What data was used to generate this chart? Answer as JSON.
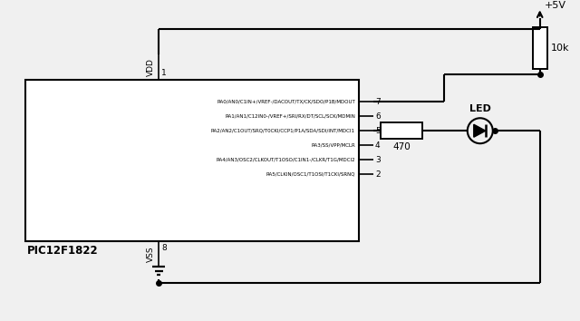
{
  "bg_color": "#f0f0f0",
  "line_color": "#000000",
  "ic_label": "PIC12F1822",
  "pin_labels": [
    "RA0/AN0/C1IN+/VREF-/DACOUT/TX/CK/SDO/P1B/MDOUT",
    "RA1/AN1/C12IN0-/VREF+/SRI/RX/DT/SCL/SCK/MDMIN",
    "RA2/AN2/C1OUT/SRQ/T0CKI/CCP1/P1A/SDA/SDI/INT/MDCI1",
    "RA3/SS/VPP/MCLR",
    "RA4/AN3/OSC2/CLKOUT/T1OSO/C1IN1-/CLKR/T1G/MDCI2",
    "RA5/CLKIN/OSC1/T1OSI/T1CKI/SRNQ"
  ],
  "pin_numbers": [
    "7",
    "6",
    "5",
    "4",
    "3",
    "2"
  ],
  "vdd_label": "VDD",
  "vdd_num": "1",
  "vss_label": "VSS",
  "vss_num": "8",
  "supply_label": "+5V",
  "res10k_label": "10k",
  "res470_label": "470",
  "led_label": "LED"
}
